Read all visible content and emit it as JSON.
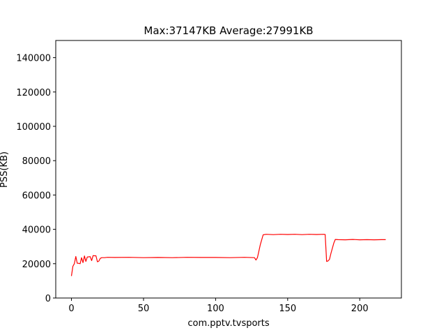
{
  "chart_data": {
    "type": "line",
    "title": "Max:37147KB Average:27991KB",
    "xlabel": "com.pptv.tvsports",
    "ylabel": "PSS(KB)",
    "xlim": [
      -10.9,
      228.9
    ],
    "ylim": [
      0,
      150000
    ],
    "xticks": [
      0,
      50,
      100,
      150,
      200
    ],
    "yticks": [
      0,
      20000,
      40000,
      60000,
      80000,
      100000,
      120000,
      140000
    ],
    "grid": false,
    "series": [
      {
        "color": "#ff0000",
        "points": [
          [
            0,
            12800
          ],
          [
            1,
            18500
          ],
          [
            2,
            20000
          ],
          [
            3,
            24200
          ],
          [
            4,
            20300
          ],
          [
            5,
            20200
          ],
          [
            6,
            20000
          ],
          [
            7,
            23500
          ],
          [
            8,
            20600
          ],
          [
            9,
            24500
          ],
          [
            10,
            21300
          ],
          [
            11,
            23900
          ],
          [
            12,
            24000
          ],
          [
            13,
            24100
          ],
          [
            14,
            21800
          ],
          [
            15,
            24700
          ],
          [
            16,
            24600
          ],
          [
            17,
            24600
          ],
          [
            18,
            21100
          ],
          [
            19,
            21500
          ],
          [
            20,
            23100
          ],
          [
            21,
            23500
          ],
          [
            22,
            23500
          ],
          [
            23,
            23500
          ],
          [
            25,
            23700
          ],
          [
            30,
            23600
          ],
          [
            40,
            23700
          ],
          [
            50,
            23500
          ],
          [
            60,
            23600
          ],
          [
            70,
            23500
          ],
          [
            80,
            23700
          ],
          [
            90,
            23600
          ],
          [
            100,
            23600
          ],
          [
            110,
            23500
          ],
          [
            120,
            23700
          ],
          [
            127,
            23500
          ],
          [
            128,
            22100
          ],
          [
            129,
            23500
          ],
          [
            131,
            31000
          ],
          [
            133,
            36800
          ],
          [
            135,
            37100
          ],
          [
            140,
            36900
          ],
          [
            145,
            37100
          ],
          [
            150,
            37000
          ],
          [
            155,
            37100
          ],
          [
            160,
            36900
          ],
          [
            165,
            37100
          ],
          [
            170,
            37000
          ],
          [
            175,
            37100
          ],
          [
            176,
            37000
          ],
          [
            177,
            21300
          ],
          [
            178,
            21600
          ],
          [
            179,
            22500
          ],
          [
            180,
            26000
          ],
          [
            182,
            32000
          ],
          [
            183,
            34100
          ],
          [
            185,
            34000
          ],
          [
            190,
            33900
          ],
          [
            195,
            34100
          ],
          [
            200,
            33900
          ],
          [
            205,
            34000
          ],
          [
            210,
            33900
          ],
          [
            215,
            34000
          ],
          [
            218,
            34000
          ]
        ]
      }
    ]
  },
  "colors": {
    "line": "#ff0000",
    "axes": "#000000",
    "background": "#ffffff"
  }
}
